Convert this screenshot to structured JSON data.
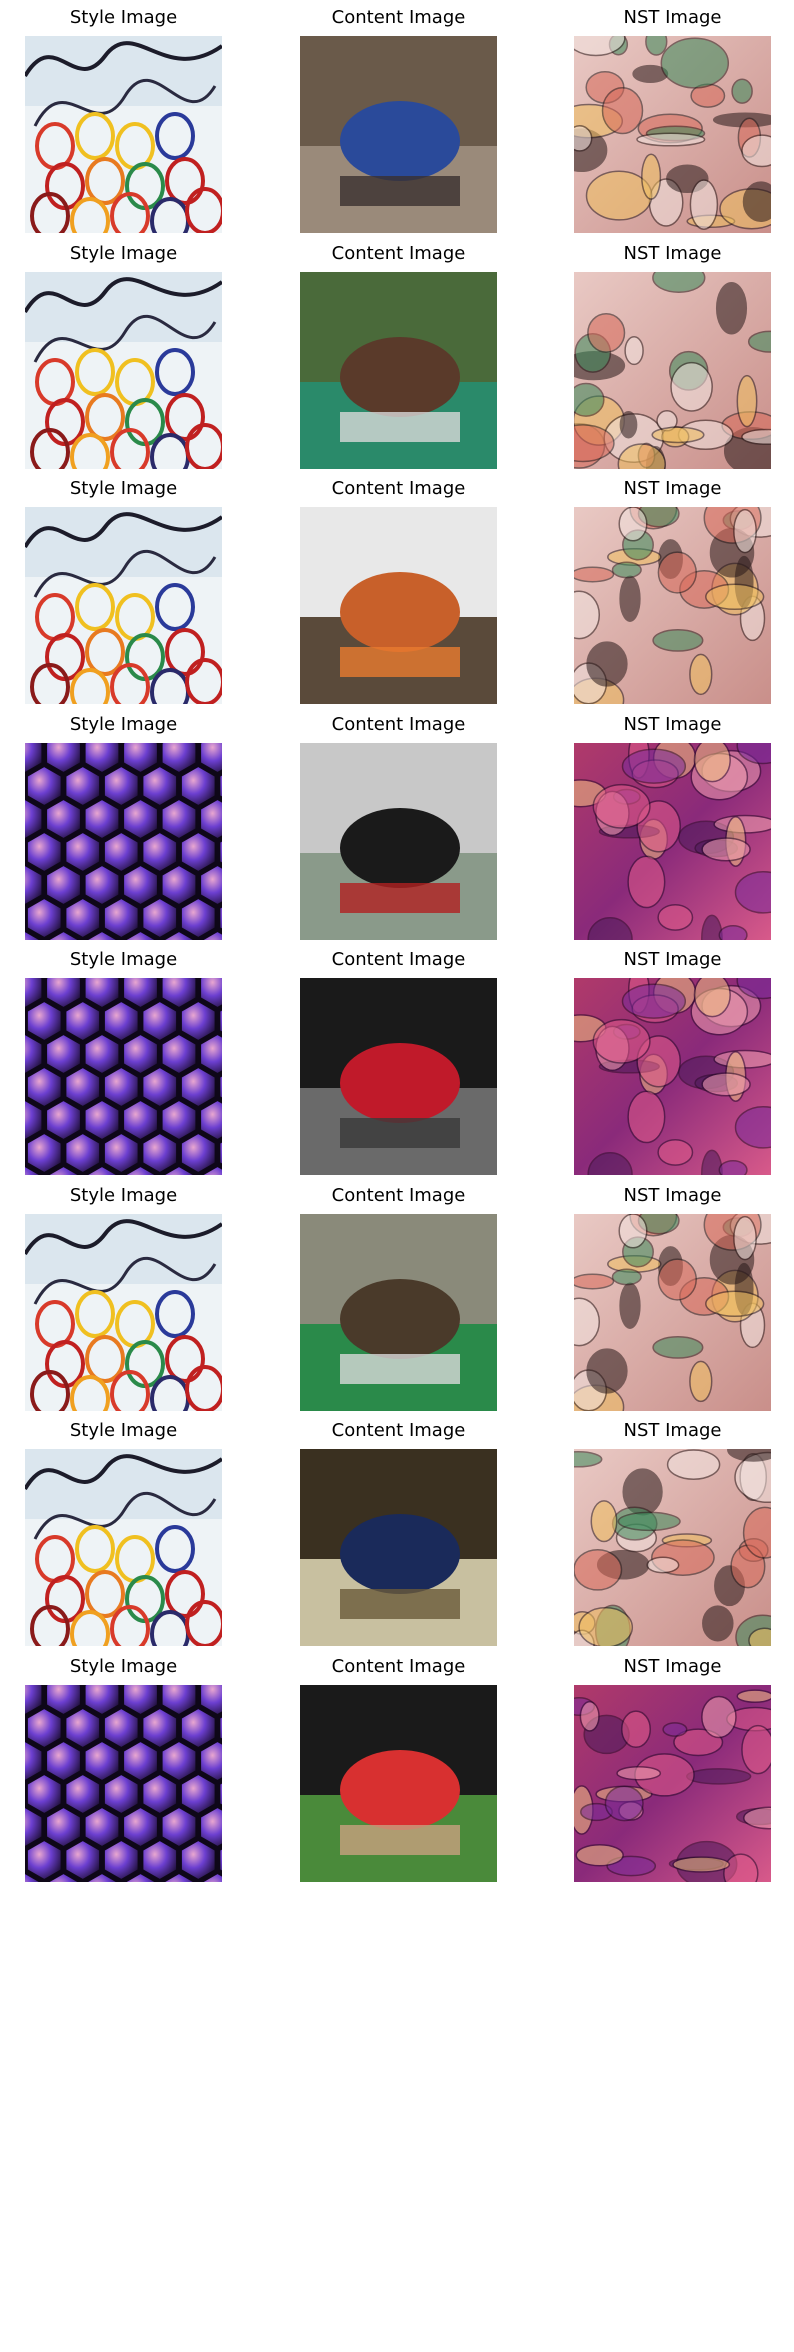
{
  "rows": [
    {
      "style": {
        "title": "Style Image",
        "scene": "swirl-style-painting-icon"
      },
      "content": {
        "title": "Content Image",
        "scene": "blue-locomotive-photo"
      },
      "nst": {
        "title": "NST Image",
        "scene": "stylized-locomotive-output"
      }
    },
    {
      "style": {
        "title": "Style Image",
        "scene": "swirl-style-painting-icon"
      },
      "content": {
        "title": "Content Image",
        "scene": "horse-jumping-photo"
      },
      "nst": {
        "title": "NST Image",
        "scene": "stylized-horse-jumping-output"
      }
    },
    {
      "style": {
        "title": "Style Image",
        "scene": "swirl-style-painting-icon"
      },
      "content": {
        "title": "Content Image",
        "scene": "dinner-table-photo"
      },
      "nst": {
        "title": "NST Image",
        "scene": "stylized-dinner-table-output"
      }
    },
    {
      "style": {
        "title": "Style Image",
        "scene": "hexagon-style-pattern-icon"
      },
      "content": {
        "title": "Content Image",
        "scene": "car-open-hood-photo"
      },
      "nst": {
        "title": "NST Image",
        "scene": "stylized-car-output"
      }
    },
    {
      "style": {
        "title": "Style Image",
        "scene": "hexagon-style-pattern-icon"
      },
      "content": {
        "title": "Content Image",
        "scene": "bed-red-pillow-photo"
      },
      "nst": {
        "title": "NST Image",
        "scene": "stylized-bed-output"
      }
    },
    {
      "style": {
        "title": "Style Image",
        "scene": "swirl-style-painting-icon"
      },
      "content": {
        "title": "Content Image",
        "scene": "child-bicycle-room-photo"
      },
      "nst": {
        "title": "NST Image",
        "scene": "stylized-bicycle-room-output"
      }
    },
    {
      "style": {
        "title": "Style Image",
        "scene": "swirl-style-painting-icon"
      },
      "content": {
        "title": "Content Image",
        "scene": "sleeping-on-floor-photo"
      },
      "nst": {
        "title": "NST Image",
        "scene": "stylized-sleeping-output"
      }
    },
    {
      "style": {
        "title": "Style Image",
        "scene": "hexagon-style-pattern-icon"
      },
      "content": {
        "title": "Content Image",
        "scene": "man-cooking-outdoors-photo"
      },
      "nst": {
        "title": "NST Image",
        "scene": "stylized-cooking-output"
      }
    }
  ]
}
